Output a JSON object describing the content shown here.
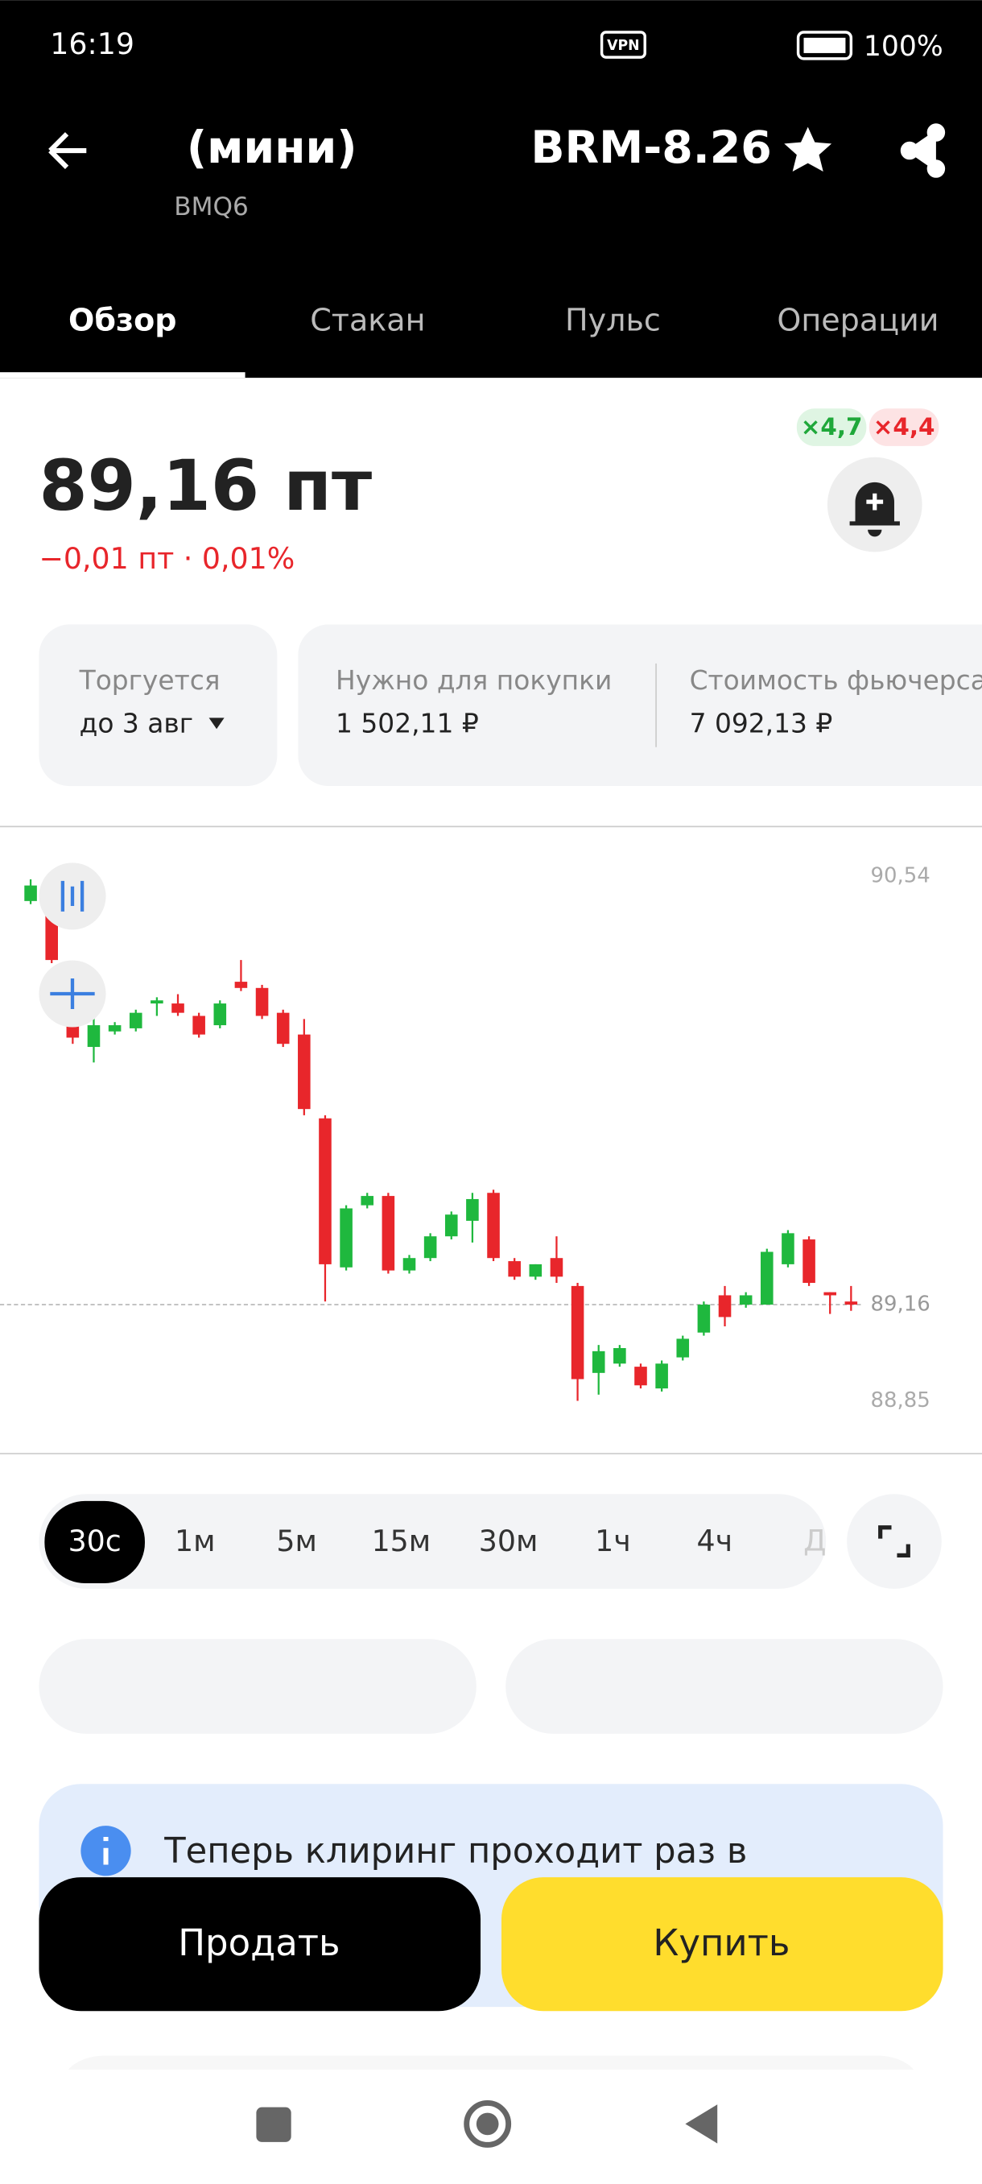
{
  "status_bar": {
    "time": "16:19",
    "vpn": "VPN",
    "battery": "100%"
  },
  "header": {
    "title": "(мини)",
    "ticker_name": "BRM-8.26",
    "ticker": "BMQ6"
  },
  "tabs": [
    "Обзор",
    "Стакан",
    "Пульс",
    "Операции"
  ],
  "badges": [
    "×4,7",
    "×4,4"
  ],
  "quote": {
    "price": "89,16 пт",
    "change": "−0,01 пт · 0,01%"
  },
  "info_cards": [
    {
      "label": "Торгуется",
      "value": "до 3 авг"
    },
    {
      "label": "Нужно для покупки",
      "value": "1 502,11 ₽"
    },
    {
      "label": "Стоимость фьючерса",
      "value": "7 092,13 ₽"
    }
  ],
  "chart_data": {
    "type": "candlestick",
    "open": [
      90.46,
      90.45,
      90.08,
      89.99,
      90.04,
      90.05,
      90.13,
      90.13,
      90.09,
      90.06,
      90.2,
      90.18,
      90.1,
      90.03,
      89.76,
      89.28,
      89.48,
      89.51,
      89.27,
      89.31,
      89.38,
      89.43,
      89.52,
      89.3,
      89.25,
      89.31,
      89.22,
      88.94,
      88.97,
      88.96,
      88.89,
      88.99,
      89.07,
      89.19,
      89.16,
      89.16,
      89.29,
      89.37,
      89.2,
      89.17
    ],
    "high": [
      90.53,
      90.47,
      90.09,
      90.09,
      90.07,
      90.11,
      90.15,
      90.16,
      90.1,
      90.14,
      90.27,
      90.19,
      90.11,
      90.08,
      89.77,
      89.48,
      89.52,
      89.52,
      89.32,
      89.39,
      89.46,
      89.52,
      89.53,
      89.31,
      89.29,
      89.38,
      89.23,
      89.03,
      89.03,
      88.97,
      88.98,
      89.06,
      89.17,
      89.22,
      89.2,
      89.34,
      89.4,
      89.38,
      89.2,
      89.22
    ],
    "low": [
      90.45,
      90.26,
      90.0,
      89.94,
      90.03,
      90.04,
      90.09,
      90.09,
      90.02,
      90.05,
      90.17,
      90.08,
      89.99,
      89.77,
      89.17,
      89.27,
      89.47,
      89.26,
      89.26,
      89.3,
      89.37,
      89.36,
      89.3,
      89.24,
      89.24,
      89.23,
      88.85,
      88.87,
      88.96,
      88.89,
      88.88,
      88.98,
      89.06,
      89.09,
      89.15,
      89.16,
      89.28,
      89.22,
      89.13,
      89.14
    ],
    "close": [
      90.51,
      90.27,
      90.02,
      90.06,
      90.06,
      90.1,
      90.14,
      90.1,
      90.03,
      90.13,
      90.18,
      90.09,
      90.0,
      89.79,
      89.29,
      89.47,
      89.51,
      89.27,
      89.31,
      89.38,
      89.45,
      89.5,
      89.31,
      89.25,
      89.29,
      89.25,
      88.92,
      89.01,
      89.02,
      88.9,
      88.97,
      89.05,
      89.16,
      89.12,
      89.19,
      89.33,
      89.39,
      89.23,
      89.19,
      89.16
    ],
    "ylim": [
      88.68,
      90.7
    ],
    "yticks": [
      {
        "value": 90.54,
        "label": "90,54"
      },
      {
        "value": 88.85,
        "label": "88,85"
      }
    ],
    "last_price": {
      "value": 89.16,
      "label": "89,16"
    },
    "up_color": "#1fb83e",
    "down_color": "#e8262b"
  },
  "intervals": [
    "30с",
    "1м",
    "5м",
    "15м",
    "30м",
    "1ч",
    "4ч",
    "Д"
  ],
  "notice": {
    "text": "Теперь клиринг проходит раз в"
  },
  "actions": {
    "sell": "Продать",
    "buy": "Купить"
  }
}
